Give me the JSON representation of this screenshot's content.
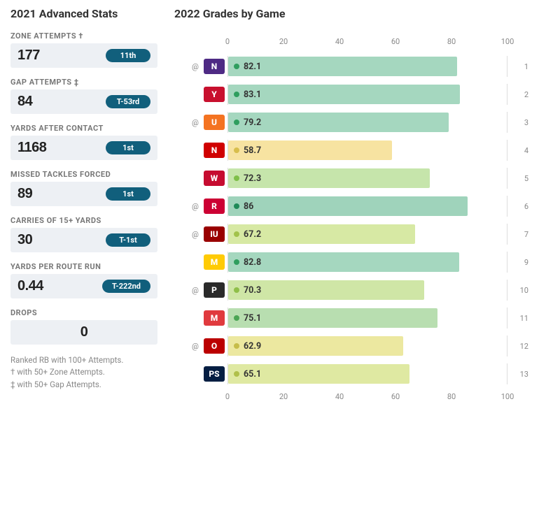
{
  "left": {
    "title": "2021 Advanced Stats",
    "stats": [
      {
        "label": "ZONE ATTEMPTS  †",
        "value": "177",
        "rank": "11th"
      },
      {
        "label": "GAP ATTEMPTS  ‡",
        "value": "84",
        "rank": "T-53rd"
      },
      {
        "label": "YARDS AFTER CONTACT",
        "value": "1168",
        "rank": "1st"
      },
      {
        "label": "MISSED TACKLES FORCED",
        "value": "89",
        "rank": "1st"
      },
      {
        "label": "CARRIES OF 15+ YARDS",
        "value": "30",
        "rank": "T-1st"
      },
      {
        "label": "YARDS PER ROUTE RUN",
        "value": "0.44",
        "rank": "T-222nd"
      },
      {
        "label": "DROPS",
        "value": "0",
        "rank": null
      }
    ],
    "footnote_lines": [
      "Ranked RB with 100+ Attempts.",
      "† with 50+ Zone Attempts.",
      "‡ with 50+ Gap Attempts."
    ]
  },
  "chart": {
    "title": "2022 Grades by Game",
    "xlim": [
      0,
      100
    ],
    "ticks": [
      0,
      20,
      40,
      60,
      80,
      100
    ],
    "rows": [
      {
        "away": true,
        "team_abbr": "N",
        "team_bg": "#4e2a84",
        "grade": 82.1,
        "week": 1,
        "bar_color": "#a5d7bf",
        "dot_color": "#2f9e5f"
      },
      {
        "away": false,
        "team_abbr": "Y",
        "team_bg": "#c8102e",
        "grade": 83.1,
        "week": 2,
        "bar_color": "#a5d7bf",
        "dot_color": "#2f9e5f"
      },
      {
        "away": true,
        "team_abbr": "U",
        "team_bg": "#f47321",
        "grade": 79.2,
        "week": 3,
        "bar_color": "#a5d7bf",
        "dot_color": "#2f9e5f"
      },
      {
        "away": false,
        "team_abbr": "N",
        "team_bg": "#d00000",
        "grade": 58.7,
        "week": 4,
        "bar_color": "#f7e3a1",
        "dot_color": "#d8be4c"
      },
      {
        "away": false,
        "team_abbr": "W",
        "team_bg": "#c60c30",
        "grade": 72.3,
        "week": 5,
        "bar_color": "#c6e5ab",
        "dot_color": "#7fbf4a"
      },
      {
        "away": true,
        "team_abbr": "R",
        "team_bg": "#cc0033",
        "grade": 86.0,
        "week": 6,
        "bar_color": "#9fd3bb",
        "dot_color": "#1f8a58"
      },
      {
        "away": true,
        "team_abbr": "IU",
        "team_bg": "#990000",
        "grade": 67.2,
        "week": 7,
        "bar_color": "#d7e9a4",
        "dot_color": "#a2c24a"
      },
      {
        "away": false,
        "team_abbr": "M",
        "team_bg": "#ffcb05",
        "grade": 82.8,
        "week": 9,
        "bar_color": "#a5d7bf",
        "dot_color": "#2f9e5f"
      },
      {
        "away": true,
        "team_abbr": "P",
        "team_bg": "#2a2a2a",
        "grade": 70.3,
        "week": 10,
        "bar_color": "#cfe6a6",
        "dot_color": "#8fbf49"
      },
      {
        "away": false,
        "team_abbr": "M",
        "team_bg": "#e03a3e",
        "grade": 75.1,
        "week": 11,
        "bar_color": "#b8deb0",
        "dot_color": "#4ca555"
      },
      {
        "away": true,
        "team_abbr": "O",
        "team_bg": "#bb0000",
        "grade": 62.9,
        "week": 12,
        "bar_color": "#ece8a0",
        "dot_color": "#c6bd4a"
      },
      {
        "away": false,
        "team_abbr": "PS",
        "team_bg": "#041e42",
        "grade": 65.1,
        "week": 13,
        "bar_color": "#dfe9a2",
        "dot_color": "#b0c04a"
      }
    ]
  },
  "style": {
    "rank_pill_bg": "#115f7c",
    "stat_row_bg": "#edf0f4"
  }
}
